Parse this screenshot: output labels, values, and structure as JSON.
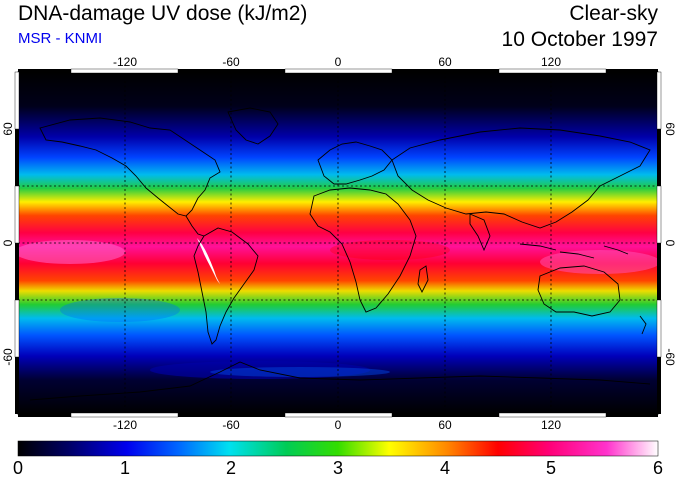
{
  "header": {
    "title": "DNA-damage UV dose (kJ/m2)",
    "subtitle": "MSR - KNMI",
    "condition": "Clear-sky",
    "date": "10 October 1997"
  },
  "map": {
    "lon_ticks": [
      "-120",
      "-60",
      "0",
      "60",
      "120"
    ],
    "lat_ticks": [
      "60",
      "0",
      "-60"
    ],
    "lon_range": [
      -180,
      180
    ],
    "lat_range": [
      -90,
      90
    ],
    "gridlines_lat": [
      -30,
      0,
      30
    ],
    "gridlines_lon": [
      -120,
      -60,
      0,
      60,
      120
    ],
    "gridline_style": "dotted"
  },
  "colorbar": {
    "labels": [
      "0",
      "1",
      "2",
      "3",
      "4",
      "5",
      "6"
    ],
    "range": [
      0,
      6
    ],
    "colors": [
      "#000000",
      "#0000cc",
      "#0088ff",
      "#00e8e8",
      "#00cc44",
      "#22dd00",
      "#ffff00",
      "#ff8800",
      "#ff0000",
      "#ff0088",
      "#ff44cc",
      "#ffffff"
    ]
  }
}
